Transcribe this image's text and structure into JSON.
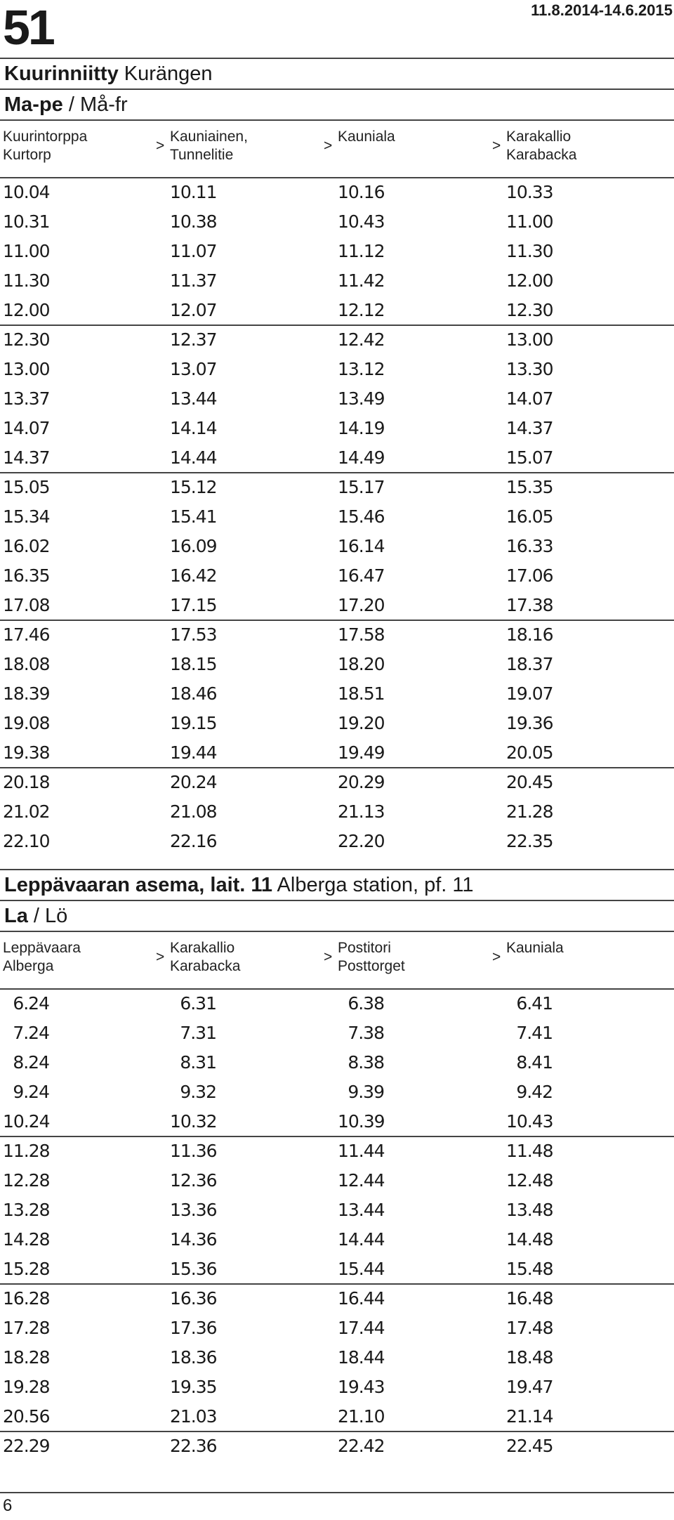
{
  "header": {
    "route_number": "51",
    "validity": "11.8.2014-14.6.2015"
  },
  "weekday": {
    "stop_fi": "Kuurinniitty",
    "stop_sv": "Kurängen",
    "days_fi": "Ma-pe",
    "days_sep": "/",
    "days_sv": "Må-fr",
    "arrow": ">",
    "columns": [
      {
        "line1": "Kuurintorppa",
        "line2": "Kurtorp"
      },
      {
        "line1": "Kauniainen,",
        "line2": "Tunnelitie"
      },
      {
        "line1": "Kauniala",
        "line2": ""
      },
      {
        "line1": "Karakallio",
        "line2": "Karabacka"
      }
    ],
    "rows": [
      [
        "10.04",
        "10.11",
        "10.16",
        "10.33"
      ],
      [
        "10.31",
        "10.38",
        "10.43",
        "11.00"
      ],
      [
        "11.00",
        "11.07",
        "11.12",
        "11.30"
      ],
      [
        "11.30",
        "11.37",
        "11.42",
        "12.00"
      ],
      [
        "12.00",
        "12.07",
        "12.12",
        "12.30"
      ],
      [
        "12.30",
        "12.37",
        "12.42",
        "13.00"
      ],
      [
        "13.00",
        "13.07",
        "13.12",
        "13.30"
      ],
      [
        "13.37",
        "13.44",
        "13.49",
        "14.07"
      ],
      [
        "14.07",
        "14.14",
        "14.19",
        "14.37"
      ],
      [
        "14.37",
        "14.44",
        "14.49",
        "15.07"
      ],
      [
        "15.05",
        "15.12",
        "15.17",
        "15.35"
      ],
      [
        "15.34",
        "15.41",
        "15.46",
        "16.05"
      ],
      [
        "16.02",
        "16.09",
        "16.14",
        "16.33"
      ],
      [
        "16.35",
        "16.42",
        "16.47",
        "17.06"
      ],
      [
        "17.08",
        "17.15",
        "17.20",
        "17.38"
      ],
      [
        "17.46",
        "17.53",
        "17.58",
        "18.16"
      ],
      [
        "18.08",
        "18.15",
        "18.20",
        "18.37"
      ],
      [
        "18.39",
        "18.46",
        "18.51",
        "19.07"
      ],
      [
        "19.08",
        "19.15",
        "19.20",
        "19.36"
      ],
      [
        "19.38",
        "19.44",
        "19.49",
        "20.05"
      ],
      [
        "20.18",
        "20.24",
        "20.29",
        "20.45"
      ],
      [
        "21.02",
        "21.08",
        "21.13",
        "21.28"
      ],
      [
        "22.10",
        "22.16",
        "22.20",
        "22.35"
      ]
    ]
  },
  "saturday": {
    "stop_fi": "Leppävaaran asema, lait. 11",
    "stop_sv": "Alberga station, pf. 11",
    "days_fi": "La",
    "days_sep": "/",
    "days_sv": "Lö",
    "arrow": ">",
    "columns": [
      {
        "line1": "Leppävaara",
        "line2": "Alberga"
      },
      {
        "line1": "Karakallio",
        "line2": "Karabacka"
      },
      {
        "line1": "Postitori",
        "line2": "Posttorget"
      },
      {
        "line1": "Kauniala",
        "line2": ""
      }
    ],
    "rows": [
      [
        "6.24",
        "6.31",
        "6.38",
        "6.41"
      ],
      [
        "7.24",
        "7.31",
        "7.38",
        "7.41"
      ],
      [
        "8.24",
        "8.31",
        "8.38",
        "8.41"
      ],
      [
        "9.24",
        "9.32",
        "9.39",
        "9.42"
      ],
      [
        "10.24",
        "10.32",
        "10.39",
        "10.43"
      ],
      [
        "11.28",
        "11.36",
        "11.44",
        "11.48"
      ],
      [
        "12.28",
        "12.36",
        "12.44",
        "12.48"
      ],
      [
        "13.28",
        "13.36",
        "13.44",
        "13.48"
      ],
      [
        "14.28",
        "14.36",
        "14.44",
        "14.48"
      ],
      [
        "15.28",
        "15.36",
        "15.44",
        "15.48"
      ],
      [
        "16.28",
        "16.36",
        "16.44",
        "16.48"
      ],
      [
        "17.28",
        "17.36",
        "17.44",
        "17.48"
      ],
      [
        "18.28",
        "18.36",
        "18.44",
        "18.48"
      ],
      [
        "19.28",
        "19.35",
        "19.43",
        "19.47"
      ],
      [
        "20.56",
        "21.03",
        "21.10",
        "21.14"
      ],
      [
        "22.29",
        "22.36",
        "22.42",
        "22.45"
      ]
    ]
  },
  "footer": {
    "page_number": "6"
  }
}
